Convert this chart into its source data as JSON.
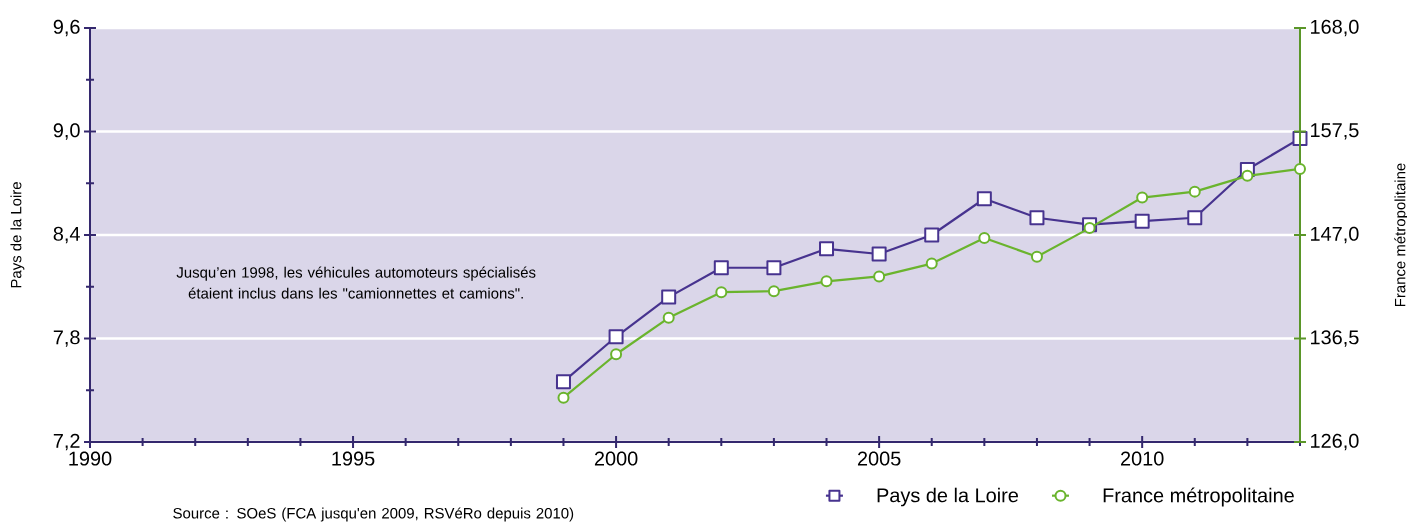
{
  "chart_data": {
    "type": "line",
    "x": [
      1999,
      2000,
      2001,
      2002,
      2003,
      2004,
      2005,
      2006,
      2007,
      2008,
      2009,
      2010,
      2011,
      2012,
      2013
    ],
    "series": [
      {
        "name": "Pays de la Loire",
        "color": "#47338f",
        "marker": "square",
        "values": [
          7.55,
          7.81,
          8.04,
          8.21,
          8.21,
          8.32,
          8.29,
          8.4,
          8.61,
          8.5,
          8.46,
          8.48,
          8.5,
          8.78,
          8.96
        ]
      },
      {
        "name": "France métropolitaine",
        "color": "#6ab42d",
        "marker": "circle",
        "axis": "y2",
        "values": [
          130.5,
          134.9,
          138.6,
          141.2,
          141.3,
          142.3,
          142.8,
          144.1,
          146.7,
          144.8,
          147.7,
          150.8,
          151.4,
          153.0,
          153.7
        ]
      }
    ],
    "ylabel": "Pays de la Loire",
    "y2label": "France métropolitaine",
    "xlim": [
      1990,
      2013
    ],
    "xticks": [
      1990,
      {
        "value": 1991,
        "label": null
      },
      {
        "value": 1992,
        "label": null
      },
      {
        "value": 1993,
        "label": null
      },
      {
        "value": 1994,
        "label": null
      },
      1995,
      {
        "value": 1996,
        "label": null
      },
      {
        "value": 1997,
        "label": null
      },
      {
        "value": 1998,
        "label": null
      },
      {
        "value": 1999,
        "label": null
      },
      2000,
      {
        "value": 2001,
        "label": null
      },
      {
        "value": 2002,
        "label": null
      },
      {
        "value": 2003,
        "label": null
      },
      {
        "value": 2004,
        "label": null
      },
      2005,
      {
        "value": 2006,
        "label": null
      },
      {
        "value": 2007,
        "label": null
      },
      {
        "value": 2008,
        "label": null
      },
      {
        "value": 2009,
        "label": null
      },
      2010,
      {
        "value": 2011,
        "label": null
      },
      {
        "value": 2012,
        "label": null
      },
      {
        "value": 2013,
        "label": null
      }
    ],
    "ylim": [
      7.2,
      9.6
    ],
    "yticks": [
      {
        "value": 7.2,
        "label": "7,2"
      },
      {
        "value": 7.5,
        "label": null
      },
      {
        "value": 7.8,
        "label": "7,8"
      },
      {
        "value": 8.1,
        "label": null
      },
      {
        "value": 8.4,
        "label": "8,4"
      },
      {
        "value": 8.7,
        "label": null
      },
      {
        "value": 9.0,
        "label": "9,0"
      },
      {
        "value": 9.3,
        "label": null
      },
      {
        "value": 9.6,
        "label": "9,6"
      }
    ],
    "y2lim": [
      126,
      168
    ],
    "y2ticks": [
      {
        "value": 126,
        "label": "126,0"
      },
      {
        "value": 136.5,
        "label": "136,5"
      },
      {
        "value": 147,
        "label": "147,0"
      },
      {
        "value": 157.5,
        "label": "157,5"
      },
      {
        "value": 168,
        "label": "168,0"
      }
    ],
    "grid": "y",
    "legend": "bottom right",
    "line_style": "solid",
    "annotations": [
      "Jusqu’en 1998, les véhicules automoteurs spécialisés étaient inclus dans les \"camionnettes et camions\".",
      "Source : SOeS (FCA jusqu'en 2009, RSVéRo depuis 2010)"
    ]
  }
}
